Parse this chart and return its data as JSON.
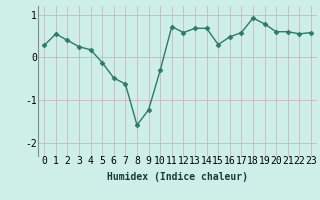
{
  "x": [
    0,
    1,
    2,
    3,
    4,
    5,
    6,
    7,
    8,
    9,
    10,
    11,
    12,
    13,
    14,
    15,
    16,
    17,
    18,
    19,
    20,
    21,
    22,
    23
  ],
  "y": [
    0.28,
    0.55,
    0.4,
    0.25,
    0.18,
    -0.12,
    -0.48,
    -0.62,
    -1.58,
    -1.22,
    -0.3,
    0.72,
    0.58,
    0.68,
    0.68,
    0.3,
    0.48,
    0.58,
    0.92,
    0.78,
    0.6,
    0.6,
    0.55,
    0.58
  ],
  "line_color": "#2d7a6a",
  "marker": "D",
  "marker_size": 2.5,
  "background_color": "#ceeee8",
  "grid_color": "#c8b8c0",
  "xlabel": "Humidex (Indice chaleur)",
  "xlim": [
    -0.5,
    23.5
  ],
  "ylim": [
    -2.3,
    1.2
  ],
  "yticks": [
    -2,
    -1,
    0,
    1
  ],
  "xlabel_fontsize": 7,
  "tick_fontsize": 7,
  "line_width": 1.0,
  "left_spine_color": "#888888"
}
